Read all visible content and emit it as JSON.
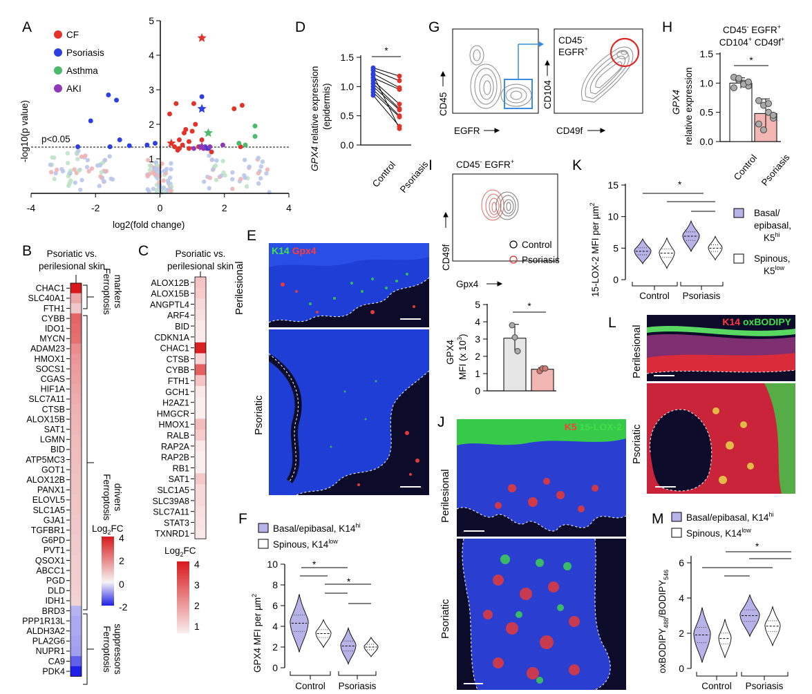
{
  "panel_letters": [
    "A",
    "B",
    "C",
    "D",
    "E",
    "F",
    "G",
    "H",
    "I",
    "J",
    "K",
    "L",
    "M"
  ],
  "colors": {
    "CF": "#e2332a",
    "Psoriasis": "#2e3fe0",
    "Asthma": "#4cba6a",
    "AKI": "#8e3ab8",
    "faint_blue": "#b9c6ea",
    "faint_red": "#efb3b3",
    "faint_green": "#bfe3c8",
    "lavender": "#b7b2e8",
    "pink": "#f2b7b3",
    "grey_bar": "#e6e6e6"
  },
  "panelA": {
    "legend": [
      "CF",
      "Psoriasis",
      "Asthma",
      "AKI"
    ],
    "threshold_label": "p<0.05",
    "xlabel": "log2(fold change)",
    "ylabel": "-log10(p value)",
    "xticks": [
      "-4",
      "-2",
      "0",
      "2",
      "4"
    ],
    "yticks": [
      "1",
      "2",
      "3",
      "4",
      "5"
    ],
    "chart_data": {
      "type": "scatter",
      "xlim": [
        -4,
        4
      ],
      "ylim": [
        0,
        5
      ],
      "threshold_y": 1.3,
      "series": [
        {
          "name": "CF",
          "color": "#e2332a",
          "points": [
            [
              0.45,
              1.35
            ],
            [
              0.55,
              1.25
            ],
            [
              0.6,
              1.55
            ],
            [
              0.75,
              1.75
            ],
            [
              0.8,
              1.85
            ],
            [
              0.9,
              1.5
            ],
            [
              1.0,
              1.8
            ],
            [
              1.1,
              2.0
            ],
            [
              1.3,
              1.55
            ],
            [
              1.45,
              1.3
            ],
            [
              1.6,
              1.2
            ],
            [
              2.3,
              2.45
            ],
            [
              2.5,
              1.35
            ],
            [
              0.3,
              2.3
            ],
            [
              0.5,
              2.6
            ],
            [
              1.05,
              2.6
            ],
            [
              0.6,
              1.3
            ],
            [
              0.7,
              1.4
            ],
            [
              0.9,
              1.3
            ],
            [
              1.2,
              1.35
            ],
            [
              2.55,
              2.55
            ]
          ],
          "stars": [
            [
              1.3,
              4.5
            ],
            [
              0.35,
              1.45
            ]
          ]
        },
        {
          "name": "Psoriasis",
          "color": "#2e3fe0",
          "points": [
            [
              -1.6,
              2.85
            ],
            [
              -1.35,
              2.7
            ],
            [
              -2.15,
              2.1
            ],
            [
              -1.25,
              1.55
            ],
            [
              -1.55,
              1.35
            ],
            [
              -2.55,
              1.35
            ],
            [
              -0.95,
              1.38
            ],
            [
              -0.4,
              1.4
            ],
            [
              -0.15,
              1.45
            ],
            [
              1.3,
              2.8
            ],
            [
              1.4,
              1.35
            ],
            [
              1.5,
              1.3
            ]
          ],
          "stars": [
            [
              1.3,
              2.45
            ]
          ]
        },
        {
          "name": "Asthma",
          "color": "#4cba6a",
          "points": [
            [
              2.95,
              1.95
            ],
            [
              2.95,
              1.65
            ],
            [
              2.65,
              1.4
            ],
            [
              2.45,
              1.45
            ]
          ],
          "stars": [
            [
              1.5,
              1.75
            ]
          ]
        },
        {
          "name": "AKI",
          "color": "#8e3ab8",
          "points": [
            [
              1.25,
              1.35
            ],
            [
              1.35,
              1.3
            ],
            [
              1.05,
              1.3
            ],
            [
              1.55,
              1.35
            ],
            [
              1.95,
              1.4
            ]
          ],
          "stars": [
            [
              1.3,
              1.35
            ]
          ]
        }
      ]
    }
  },
  "panelB": {
    "title": [
      "Psoriatic vs.",
      "perilesional skin"
    ],
    "genes": [
      "CHAC1",
      "SLC40A1",
      "FTH1",
      "CYBB",
      "IDO1",
      "MYCN",
      "ADAM23",
      "HMOX1",
      "SOCS1",
      "CGAS",
      "HIF1A",
      "SLC7A11",
      "CTSB",
      "ALOX15B",
      "SAT1",
      "LGMN",
      "BID",
      "ATP5MC3",
      "GOT1",
      "ALOX12B",
      "PANX1",
      "ELOVL5",
      "SLC1A5",
      "GJA1",
      "TGFBR1",
      "G6PD",
      "PVT1",
      "QSOX1",
      "ABCC1",
      "PGD",
      "DLD",
      "IDH1",
      "BRD3",
      "PPP1R13L",
      "ALDH3A2",
      "PLA2G6",
      "NUPR1",
      "CA9",
      "PDK4"
    ],
    "values": [
      4.0,
      1.4,
      0.8,
      2.6,
      2.5,
      2.4,
      1.9,
      1.7,
      1.6,
      1.5,
      1.4,
      1.3,
      1.2,
      1.15,
      1.1,
      1.05,
      1.0,
      1.0,
      0.95,
      0.9,
      0.9,
      0.85,
      0.85,
      0.8,
      0.8,
      0.75,
      0.75,
      0.7,
      0.7,
      0.7,
      0.65,
      0.6,
      -0.6,
      -0.7,
      -0.7,
      -0.75,
      -0.8,
      -1.4,
      -2.0
    ],
    "groups": [
      [
        "Ferroptosis",
        "markers"
      ],
      [
        "Ferroptosis",
        "drivers"
      ],
      [
        "Ferroptosis",
        "suppressors"
      ]
    ],
    "colorbar_title": "Log2FC",
    "colorbar_ticks": [
      "4",
      "2",
      "0",
      "-2"
    ]
  },
  "panelC": {
    "title": [
      "Psoriatic vs.",
      "perilesional skin"
    ],
    "genes": [
      "ALOX12B",
      "ALOX15B",
      "ANGPTL4",
      "ARF4",
      "BID",
      "CDKN1A",
      "CHAC1",
      "CTSB",
      "CYBB",
      "FTH1",
      "GCH1",
      "H2AZ1",
      "HMGCR",
      "HMOX1",
      "RALB",
      "RAP2A",
      "RAP2B",
      "RB1",
      "SAT1",
      "SLC1A5",
      "SLC39A8",
      "SLC7A11",
      "STAT3",
      "TXNRD1"
    ],
    "values": [
      1.6,
      1.5,
      1.3,
      1.2,
      1.1,
      1.05,
      3.9,
      1.35,
      3.0,
      1.6,
      1.1,
      1.0,
      1.0,
      1.7,
      1.5,
      1.1,
      1.0,
      1.0,
      1.55,
      1.3,
      1.3,
      1.2,
      1.15,
      1.1
    ],
    "colorbar_title": "Log2FC",
    "colorbar_ticks": [
      "4",
      "3",
      "2",
      "1"
    ]
  },
  "panelD": {
    "ylabel_italic": "GPX4",
    "ylabel_rest": " relative expression",
    "ylabel2": "(epidermis)",
    "yticks": [
      "0.0",
      "0.5",
      "1.0",
      "1.5"
    ],
    "xcats": [
      "Control",
      "Psoriasis"
    ],
    "sig": "*",
    "chart_data": {
      "type": "scatter",
      "ylim": [
        0,
        1.5
      ],
      "pairs": [
        [
          1.32,
          1.18
        ],
        [
          1.28,
          1.1
        ],
        [
          1.22,
          0.98
        ],
        [
          1.15,
          0.95
        ],
        [
          1.1,
          0.7
        ],
        [
          1.05,
          0.62
        ],
        [
          1.0,
          0.6
        ],
        [
          0.95,
          0.5
        ],
        [
          0.9,
          0.48
        ],
        [
          0.85,
          0.32
        ],
        [
          1.2,
          0.28
        ]
      ]
    }
  },
  "panelE": {
    "stain_a": "K14",
    "stain_b": "Gpx4",
    "rows": [
      "Perilesional",
      "Psoriatic"
    ]
  },
  "panelF": {
    "legend": [
      "Basal/epibasal, K14",
      "Spinous, K14"
    ],
    "legend_sup": [
      "hi",
      "low"
    ],
    "ylabel": "GPX4 MFI per µm",
    "ylabel_sup": "2",
    "yticks": [
      "0",
      "2",
      "4",
      "6",
      "8",
      "10"
    ],
    "groups": [
      "Control",
      "Psoriasis"
    ],
    "sig": [
      "*",
      "*"
    ],
    "chart_data": {
      "type": "violin",
      "ylim": [
        0,
        10
      ],
      "medians": [
        4.3,
        3.3,
        2.1,
        2.0
      ],
      "series": [
        "Basal/epibasal",
        "Spinous",
        "Basal/epibasal",
        "Spinous"
      ]
    }
  },
  "panelG": {
    "gate1_x": "EGFR",
    "gate1_y": "CD45",
    "gate2_x": "CD49f",
    "gate2_y": "CD104",
    "gate_label_a": "CD45",
    "gate_label_a_sup": "-",
    "gate_label_b": "EGFR",
    "gate_label_b_sup": "+"
  },
  "panelH": {
    "title1": "CD45",
    "title1_sup": "-",
    "title1b": " EGFR",
    "title1b_sup": "+",
    "title2": "CD104",
    "title2_sup": "+",
    "title2b": " CD49f",
    "title2b_sup": "+",
    "ylabel_italic": "GPX4",
    "ylabel2": "relative expression",
    "yticks": [
      "0.0",
      "0.5",
      "1.0",
      "1.5"
    ],
    "xcats": [
      "Control",
      "Psoriasis"
    ],
    "sig": "*",
    "chart_data": {
      "type": "bar",
      "categories": [
        "Control",
        "Psoriasis"
      ],
      "values": [
        1.0,
        0.48
      ],
      "errors": [
        0.09,
        0.25
      ],
      "ylim": [
        0,
        1.5
      ],
      "points": [
        [
          1.1,
          1.05,
          1.0,
          0.95,
          0.92,
          1.08,
          0.98,
          1.02
        ],
        [
          0.7,
          0.62,
          0.5,
          0.4,
          0.3,
          0.2,
          0.65,
          0.45
        ]
      ]
    }
  },
  "panelI": {
    "title_a": "CD45",
    "title_a_sup": "-",
    "title_b": " EGFR",
    "title_b_sup": "+",
    "xlabel": "Gpx4",
    "ylabel": "CD49f",
    "legend": [
      "Control",
      "Psoriasis"
    ],
    "bar_ylabel": "GPX4",
    "bar_ylabel2": "MFI (x 10",
    "bar_ylabel2_sup": "3",
    "bar_ylabel2_end": ")",
    "yticks": [
      "0",
      "1",
      "2",
      "3",
      "4",
      "5"
    ],
    "sig": "*",
    "chart_data": {
      "type": "bar",
      "categories": [
        "Control",
        "Psoriasis"
      ],
      "values": [
        3.05,
        1.25
      ],
      "errors": [
        0.8,
        0.1
      ],
      "ylim": [
        0,
        5
      ],
      "points": [
        [
          3.8,
          3.1,
          2.3
        ],
        [
          1.15,
          1.3,
          1.3
        ]
      ]
    }
  },
  "panelJ": {
    "stain_a": "K5",
    "stain_b": "15-LOX-2",
    "rows": [
      "Perilesional",
      "Psoriatic"
    ]
  },
  "panelK": {
    "ylabel": "15-LOX-2 MFI per µm",
    "ylabel_sup": "2",
    "yticks": [
      "0",
      "5",
      "10",
      "15"
    ],
    "groups": [
      "Control",
      "Psoriasis"
    ],
    "sig": "*",
    "legend": [
      [
        "Basal/",
        "epibasal,",
        "K5"
      ],
      [
        "Spinous,",
        "K5"
      ]
    ],
    "legend_sup": [
      "hi",
      "low"
    ],
    "chart_data": {
      "type": "violin",
      "ylim": [
        0,
        15
      ],
      "medians": [
        4.5,
        4.2,
        6.9,
        5.0
      ]
    }
  },
  "panelL": {
    "stain_a": "K14",
    "stain_b": "oxBODIPY",
    "rows": [
      "Perilesional",
      "Psoriatic"
    ]
  },
  "panelM": {
    "legend": [
      "Basal/epibasal, K14",
      "Spinous, K14"
    ],
    "legend_sup": [
      "hi",
      "low"
    ],
    "ylabel_a": "oxBODIPY",
    "ylabel_sub1": "488",
    "ylabel_b": "/BODIPY",
    "ylabel_sub2": "546",
    "yticks": [
      "0",
      "2",
      "4",
      "6"
    ],
    "groups": [
      "Control",
      "Psoriasis"
    ],
    "sig": "*",
    "chart_data": {
      "type": "violin",
      "ylim": [
        0,
        6
      ],
      "medians": [
        1.9,
        1.7,
        3.0,
        2.4
      ]
    }
  }
}
